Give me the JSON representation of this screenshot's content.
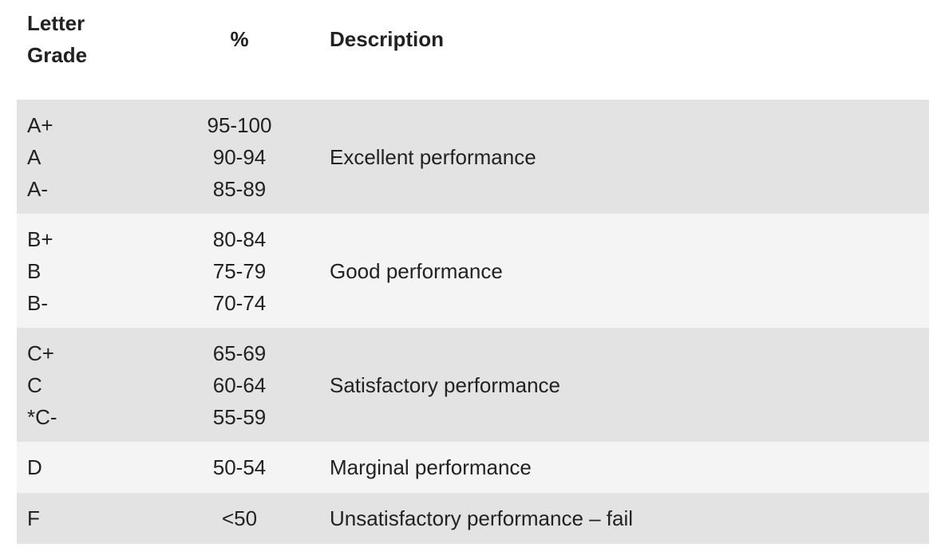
{
  "table": {
    "headers": {
      "grade_line1": "Letter",
      "grade_line2": "Grade",
      "percent": "%",
      "description": "Description"
    },
    "rows": [
      {
        "grades": [
          "A+",
          "A",
          "A-"
        ],
        "percents": [
          "95-100",
          "90-94",
          "85-89"
        ],
        "description": "Excellent performance"
      },
      {
        "grades": [
          "B+",
          "B",
          "B-"
        ],
        "percents": [
          "80-84",
          "75-79",
          "70-74"
        ],
        "description": "Good performance"
      },
      {
        "grades": [
          "C+",
          "C",
          "*C-"
        ],
        "percents": [
          "65-69",
          "60-64",
          "55-59"
        ],
        "description": "Satisfactory performance"
      },
      {
        "grades": [
          "D"
        ],
        "percents": [
          "50-54"
        ],
        "description": "Marginal performance"
      },
      {
        "grades": [
          "F"
        ],
        "percents": [
          "<50"
        ],
        "description": "Unsatisfactory performance – fail"
      }
    ]
  },
  "colors": {
    "shade_row": "#e3e3e3",
    "light_row": "#f4f4f4",
    "text": "#222222"
  }
}
